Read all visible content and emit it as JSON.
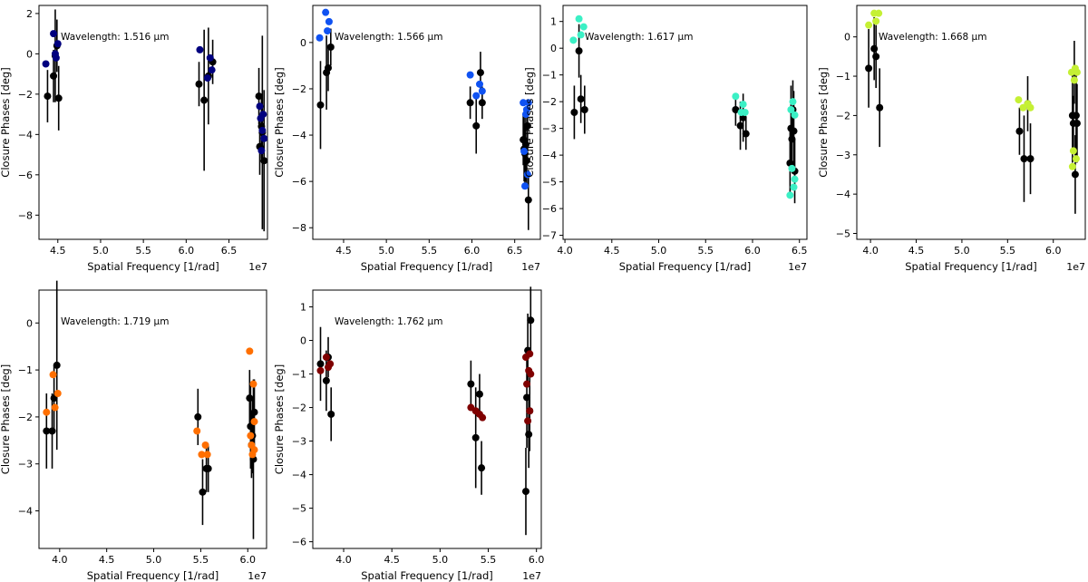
{
  "chart_data": [
    {
      "type": "scatter",
      "annotation": "Wavelength: 1.516 μm",
      "xlabel": "Spatial Frequency [1/rad]",
      "ylabel": "Closure Phases [deg]",
      "x_offset_text": "1e7",
      "xlim": [
        4.28,
        6.95
      ],
      "ylim": [
        -9.2,
        2.4
      ],
      "xticks": [
        4.5,
        5.0,
        5.5,
        6.0,
        6.5
      ],
      "xtick_labels": [
        "4.5",
        "5.0",
        "5.5",
        "6.0",
        "6.5"
      ],
      "yticks": [
        2,
        0,
        -2,
        -4,
        -6,
        -8
      ],
      "ytick_labels": [
        "2",
        "0",
        "−2",
        "−4",
        "−6",
        "−8"
      ],
      "model_color": "#00007f",
      "observed": [
        {
          "x": 4.38,
          "y": -2.1,
          "err": 1.3
        },
        {
          "x": 4.45,
          "y": -1.1,
          "err": 1.3
        },
        {
          "x": 4.47,
          "y": -0.1,
          "err": 2.3
        },
        {
          "x": 4.49,
          "y": 0.4,
          "err": 1.3
        },
        {
          "x": 4.51,
          "y": -2.2,
          "err": 1.6
        },
        {
          "x": 6.15,
          "y": -1.5,
          "err": 1.1
        },
        {
          "x": 6.21,
          "y": -2.3,
          "err": 3.5
        },
        {
          "x": 6.26,
          "y": -1.1,
          "err": 2.4
        },
        {
          "x": 6.31,
          "y": -0.4,
          "err": 1.1
        },
        {
          "x": 6.85,
          "y": -2.1,
          "err": 1.4
        },
        {
          "x": 6.86,
          "y": -4.6,
          "err": 1.4
        },
        {
          "x": 6.88,
          "y": -3.6,
          "err": 1.6
        },
        {
          "x": 6.89,
          "y": -3.9,
          "err": 4.8
        },
        {
          "x": 6.91,
          "y": -5.3,
          "err": 3.5
        }
      ],
      "model": [
        {
          "x": 4.36,
          "y": -0.5
        },
        {
          "x": 4.45,
          "y": 1.0
        },
        {
          "x": 4.47,
          "y": 0.0
        },
        {
          "x": 4.48,
          "y": -0.2
        },
        {
          "x": 4.5,
          "y": 0.5
        },
        {
          "x": 6.16,
          "y": 0.2
        },
        {
          "x": 6.25,
          "y": -1.2
        },
        {
          "x": 6.28,
          "y": -0.2
        },
        {
          "x": 6.3,
          "y": -0.8
        },
        {
          "x": 6.86,
          "y": -2.6
        },
        {
          "x": 6.87,
          "y": -3.2
        },
        {
          "x": 6.88,
          "y": -4.8
        },
        {
          "x": 6.89,
          "y": -3.8
        },
        {
          "x": 6.9,
          "y": -3.0
        },
        {
          "x": 6.91,
          "y": -4.2
        }
      ]
    },
    {
      "type": "scatter",
      "annotation": "Wavelength: 1.566 μm",
      "xlabel": "Spatial Frequency [1/rad]",
      "ylabel": "Closure Phases [deg]",
      "x_offset_text": "1e7",
      "xlim": [
        4.14,
        6.8
      ],
      "ylim": [
        -8.5,
        1.6
      ],
      "xticks": [
        4.5,
        5.0,
        5.5,
        6.0,
        6.5
      ],
      "xtick_labels": [
        "4.5",
        "5.0",
        "5.5",
        "6.0",
        "6.5"
      ],
      "yticks": [
        0,
        -2,
        -4,
        -6,
        -8
      ],
      "ytick_labels": [
        "0",
        "−2",
        "−4",
        "−6",
        "−8"
      ],
      "model_color": "#0f52f2",
      "observed": [
        {
          "x": 4.23,
          "y": -2.7,
          "err": 1.9
        },
        {
          "x": 4.3,
          "y": -1.3,
          "err": 1.6
        },
        {
          "x": 4.32,
          "y": -1.1,
          "err": 1.0
        },
        {
          "x": 4.35,
          "y": -0.2,
          "err": 0.8
        },
        {
          "x": 5.98,
          "y": -2.6,
          "err": 0.7
        },
        {
          "x": 6.05,
          "y": -3.6,
          "err": 1.2
        },
        {
          "x": 6.1,
          "y": -1.3,
          "err": 0.9
        },
        {
          "x": 6.12,
          "y": -2.6,
          "err": 0.7
        },
        {
          "x": 6.6,
          "y": -4.2,
          "err": 1.1
        },
        {
          "x": 6.61,
          "y": -4.6,
          "err": 1.4
        },
        {
          "x": 6.62,
          "y": -4.8,
          "err": 1.3
        },
        {
          "x": 6.63,
          "y": -4.4,
          "err": 1.6
        },
        {
          "x": 6.64,
          "y": -5.1,
          "err": 1.0
        },
        {
          "x": 6.65,
          "y": -3.6,
          "err": 1.1
        },
        {
          "x": 6.66,
          "y": -6.8,
          "err": 1.3
        }
      ],
      "model": [
        {
          "x": 4.22,
          "y": 0.2
        },
        {
          "x": 4.29,
          "y": 1.3
        },
        {
          "x": 4.31,
          "y": 0.5
        },
        {
          "x": 4.33,
          "y": 0.9
        },
        {
          "x": 5.98,
          "y": -1.4
        },
        {
          "x": 6.05,
          "y": -2.3
        },
        {
          "x": 6.09,
          "y": -1.8
        },
        {
          "x": 6.12,
          "y": -2.1
        },
        {
          "x": 6.6,
          "y": -2.6
        },
        {
          "x": 6.61,
          "y": -4.7
        },
        {
          "x": 6.62,
          "y": -6.2
        },
        {
          "x": 6.63,
          "y": -3.1
        },
        {
          "x": 6.64,
          "y": -2.9
        },
        {
          "x": 6.65,
          "y": -5.7
        },
        {
          "x": 6.66,
          "y": -2.6
        }
      ]
    },
    {
      "type": "scatter",
      "annotation": "Wavelength: 1.617 μm",
      "xlabel": "Spatial Frequency [1/rad]",
      "ylabel": "Closure Phases [deg]",
      "x_offset_text": "1e7",
      "xlim": [
        3.98,
        6.58
      ],
      "ylim": [
        -7.15,
        1.6
      ],
      "xticks": [
        4.0,
        4.5,
        5.0,
        5.5,
        6.0,
        6.5
      ],
      "xtick_labels": [
        "4.0",
        "4.5",
        "5.0",
        "5.5",
        "6.0",
        "6.5"
      ],
      "yticks": [
        1,
        0,
        -1,
        -2,
        -3,
        -4,
        -5,
        -6,
        -7
      ],
      "ytick_labels": [
        "1",
        "0",
        "−1",
        "−2",
        "−3",
        "−4",
        "−5",
        "−6",
        "−7"
      ],
      "model_color": "#3bf0c5",
      "observed": [
        {
          "x": 4.1,
          "y": -2.4,
          "err": 1.0
        },
        {
          "x": 4.15,
          "y": -0.1,
          "err": 1.0
        },
        {
          "x": 4.17,
          "y": -1.9,
          "err": 0.9
        },
        {
          "x": 4.21,
          "y": -2.3,
          "err": 0.9
        },
        {
          "x": 5.82,
          "y": -2.3,
          "err": 0.6
        },
        {
          "x": 5.87,
          "y": -2.9,
          "err": 0.9
        },
        {
          "x": 5.9,
          "y": -2.6,
          "err": 0.9
        },
        {
          "x": 5.93,
          "y": -3.2,
          "err": 0.6
        },
        {
          "x": 6.4,
          "y": -4.3,
          "err": 1.2
        },
        {
          "x": 6.41,
          "y": -3.0,
          "err": 1.6
        },
        {
          "x": 6.42,
          "y": -3.4,
          "err": 1.2
        },
        {
          "x": 6.43,
          "y": -2.3,
          "err": 1.1
        },
        {
          "x": 6.44,
          "y": -3.1,
          "err": 1.5
        },
        {
          "x": 6.45,
          "y": -4.6,
          "err": 1.2
        }
      ],
      "model": [
        {
          "x": 4.09,
          "y": 0.3
        },
        {
          "x": 4.15,
          "y": 1.1
        },
        {
          "x": 4.17,
          "y": 0.5
        },
        {
          "x": 4.2,
          "y": 0.8
        },
        {
          "x": 5.82,
          "y": -1.8
        },
        {
          "x": 5.88,
          "y": -2.4
        },
        {
          "x": 5.9,
          "y": -2.1
        },
        {
          "x": 5.92,
          "y": -2.4
        },
        {
          "x": 6.4,
          "y": -5.5
        },
        {
          "x": 6.41,
          "y": -2.3
        },
        {
          "x": 6.42,
          "y": -4.5
        },
        {
          "x": 6.43,
          "y": -2.0
        },
        {
          "x": 6.44,
          "y": -5.2
        },
        {
          "x": 6.45,
          "y": -4.9
        },
        {
          "x": 6.45,
          "y": -2.5
        }
      ]
    },
    {
      "type": "scatter",
      "annotation": "Wavelength: 1.668 μm",
      "xlabel": "Spatial Frequency [1/rad]",
      "ylabel": "Closure Phases [deg]",
      "x_offset_text": "1e7",
      "xlim": [
        3.85,
        6.35
      ],
      "ylim": [
        -5.15,
        0.8
      ],
      "xticks": [
        4.0,
        4.5,
        5.0,
        5.5,
        6.0
      ],
      "xtick_labels": [
        "4.0",
        "4.5",
        "5.0",
        "5.5",
        "6.0"
      ],
      "yticks": [
        0,
        -1,
        -2,
        -3,
        -4,
        -5
      ],
      "ytick_labels": [
        "0",
        "−1",
        "−2",
        "−3",
        "−4",
        "−5"
      ],
      "model_color": "#c5f034",
      "observed": [
        {
          "x": 3.98,
          "y": -0.8,
          "err": 1.0
        },
        {
          "x": 4.04,
          "y": -0.3,
          "err": 0.8
        },
        {
          "x": 4.06,
          "y": -0.5,
          "err": 0.8
        },
        {
          "x": 4.1,
          "y": -1.8,
          "err": 1.0
        },
        {
          "x": 5.63,
          "y": -2.4,
          "err": 0.6
        },
        {
          "x": 5.68,
          "y": -3.1,
          "err": 1.1
        },
        {
          "x": 5.72,
          "y": -1.7,
          "err": 0.7
        },
        {
          "x": 5.75,
          "y": -3.1,
          "err": 0.9
        },
        {
          "x": 6.21,
          "y": -2.0,
          "err": 1.2
        },
        {
          "x": 6.22,
          "y": -2.2,
          "err": 0.7
        },
        {
          "x": 6.23,
          "y": -0.9,
          "err": 0.8
        },
        {
          "x": 6.24,
          "y": -3.5,
          "err": 1.0
        },
        {
          "x": 6.25,
          "y": -2.0,
          "err": 1.2
        },
        {
          "x": 6.26,
          "y": -2.2,
          "err": 1.0
        }
      ],
      "model": [
        {
          "x": 3.98,
          "y": 0.3
        },
        {
          "x": 4.04,
          "y": 0.6
        },
        {
          "x": 4.06,
          "y": 0.4
        },
        {
          "x": 4.09,
          "y": 0.6
        },
        {
          "x": 5.62,
          "y": -1.6
        },
        {
          "x": 5.67,
          "y": -1.8
        },
        {
          "x": 5.72,
          "y": -1.7
        },
        {
          "x": 5.75,
          "y": -1.8
        },
        {
          "x": 6.2,
          "y": -0.9
        },
        {
          "x": 6.21,
          "y": -3.3
        },
        {
          "x": 6.22,
          "y": -2.9
        },
        {
          "x": 6.23,
          "y": -1.1
        },
        {
          "x": 6.24,
          "y": -0.8
        },
        {
          "x": 6.25,
          "y": -3.1
        },
        {
          "x": 6.26,
          "y": -0.9
        }
      ]
    },
    {
      "type": "scatter",
      "annotation": "Wavelength: 1.719 μm",
      "xlabel": "Spatial Frequency [1/rad]",
      "ylabel": "Closure Phases [deg]",
      "x_offset_text": "1e7",
      "xlim": [
        3.78,
        6.2
      ],
      "ylim": [
        -4.8,
        0.7
      ],
      "xticks": [
        4.0,
        4.5,
        5.0,
        5.5,
        6.0
      ],
      "xtick_labels": [
        "4.0",
        "4.5",
        "5.0",
        "5.5",
        "6.0"
      ],
      "yticks": [
        0,
        -1,
        -2,
        -3,
        -4
      ],
      "ytick_labels": [
        "0",
        "−1",
        "−2",
        "−3",
        "−4"
      ],
      "model_color": "#ff6f00",
      "observed": [
        {
          "x": 3.86,
          "y": -2.3,
          "err": 0.8
        },
        {
          "x": 3.92,
          "y": -2.3,
          "err": 0.8
        },
        {
          "x": 3.94,
          "y": -1.6,
          "err": 0.7
        },
        {
          "x": 3.97,
          "y": -0.9,
          "err": 1.8
        },
        {
          "x": 5.47,
          "y": -2.0,
          "err": 0.6
        },
        {
          "x": 5.52,
          "y": -3.6,
          "err": 0.7
        },
        {
          "x": 5.56,
          "y": -3.1,
          "err": 0.5
        },
        {
          "x": 5.58,
          "y": -3.1,
          "err": 0.5
        },
        {
          "x": 6.02,
          "y": -1.6,
          "err": 0.6
        },
        {
          "x": 6.03,
          "y": -2.2,
          "err": 0.9
        },
        {
          "x": 6.04,
          "y": -2.6,
          "err": 0.7
        },
        {
          "x": 6.05,
          "y": -2.4,
          "err": 0.8
        },
        {
          "x": 6.06,
          "y": -2.9,
          "err": 1.7
        },
        {
          "x": 6.07,
          "y": -1.9,
          "err": 0.7
        }
      ],
      "model": [
        {
          "x": 3.86,
          "y": -1.9
        },
        {
          "x": 3.93,
          "y": -1.1
        },
        {
          "x": 3.95,
          "y": -1.8
        },
        {
          "x": 3.98,
          "y": -1.5
        },
        {
          "x": 5.46,
          "y": -2.3
        },
        {
          "x": 5.51,
          "y": -2.8
        },
        {
          "x": 5.55,
          "y": -2.6
        },
        {
          "x": 5.57,
          "y": -2.8
        },
        {
          "x": 6.02,
          "y": -0.6
        },
        {
          "x": 6.03,
          "y": -2.4
        },
        {
          "x": 6.04,
          "y": -2.6
        },
        {
          "x": 6.05,
          "y": -2.8
        },
        {
          "x": 6.06,
          "y": -1.3
        },
        {
          "x": 6.07,
          "y": -2.1
        },
        {
          "x": 6.07,
          "y": -2.7
        }
      ]
    },
    {
      "type": "scatter",
      "annotation": "Wavelength: 1.762 μm",
      "xlabel": "Spatial Frequency [1/rad]",
      "ylabel": "Closure Phases [deg]",
      "x_offset_text": "1e7",
      "xlim": [
        3.68,
        6.05
      ],
      "ylim": [
        -6.2,
        1.5
      ],
      "xticks": [
        4.0,
        4.5,
        5.0,
        5.5,
        6.0
      ],
      "xtick_labels": [
        "4.0",
        "4.5",
        "5.0",
        "5.5",
        "6.0"
      ],
      "yticks": [
        1,
        0,
        -1,
        -2,
        -3,
        -4,
        -5,
        -6
      ],
      "ytick_labels": [
        "1",
        "0",
        "−1",
        "−2",
        "−3",
        "−4",
        "−5",
        "−6"
      ],
      "model_color": "#7f0000",
      "observed": [
        {
          "x": 3.76,
          "y": -0.7,
          "err": 1.1
        },
        {
          "x": 3.82,
          "y": -1.2,
          "err": 0.9
        },
        {
          "x": 3.84,
          "y": -0.5,
          "err": 0.6
        },
        {
          "x": 3.87,
          "y": -2.2,
          "err": 0.8
        },
        {
          "x": 5.32,
          "y": -1.3,
          "err": 0.7
        },
        {
          "x": 5.37,
          "y": -2.9,
          "err": 1.5
        },
        {
          "x": 5.41,
          "y": -1.6,
          "err": 0.6
        },
        {
          "x": 5.43,
          "y": -3.8,
          "err": 0.8
        },
        {
          "x": 5.89,
          "y": -4.5,
          "err": 1.3
        },
        {
          "x": 5.9,
          "y": -1.7,
          "err": 1.5
        },
        {
          "x": 5.91,
          "y": -0.3,
          "err": 1.1
        },
        {
          "x": 5.92,
          "y": -2.8,
          "err": 1.0
        },
        {
          "x": 5.93,
          "y": -2.1,
          "err": 1.2
        },
        {
          "x": 5.94,
          "y": 0.6,
          "err": 1.0
        }
      ],
      "model": [
        {
          "x": 3.76,
          "y": -0.9
        },
        {
          "x": 3.82,
          "y": -0.5
        },
        {
          "x": 3.84,
          "y": -0.8
        },
        {
          "x": 3.86,
          "y": -0.7
        },
        {
          "x": 5.32,
          "y": -2.0
        },
        {
          "x": 5.37,
          "y": -2.1
        },
        {
          "x": 5.41,
          "y": -2.2
        },
        {
          "x": 5.44,
          "y": -2.3
        },
        {
          "x": 5.89,
          "y": -0.5
        },
        {
          "x": 5.9,
          "y": -1.3
        },
        {
          "x": 5.91,
          "y": -2.4
        },
        {
          "x": 5.92,
          "y": -0.9
        },
        {
          "x": 5.93,
          "y": -2.1
        },
        {
          "x": 5.93,
          "y": -0.4
        },
        {
          "x": 5.94,
          "y": -1.0
        }
      ]
    }
  ]
}
